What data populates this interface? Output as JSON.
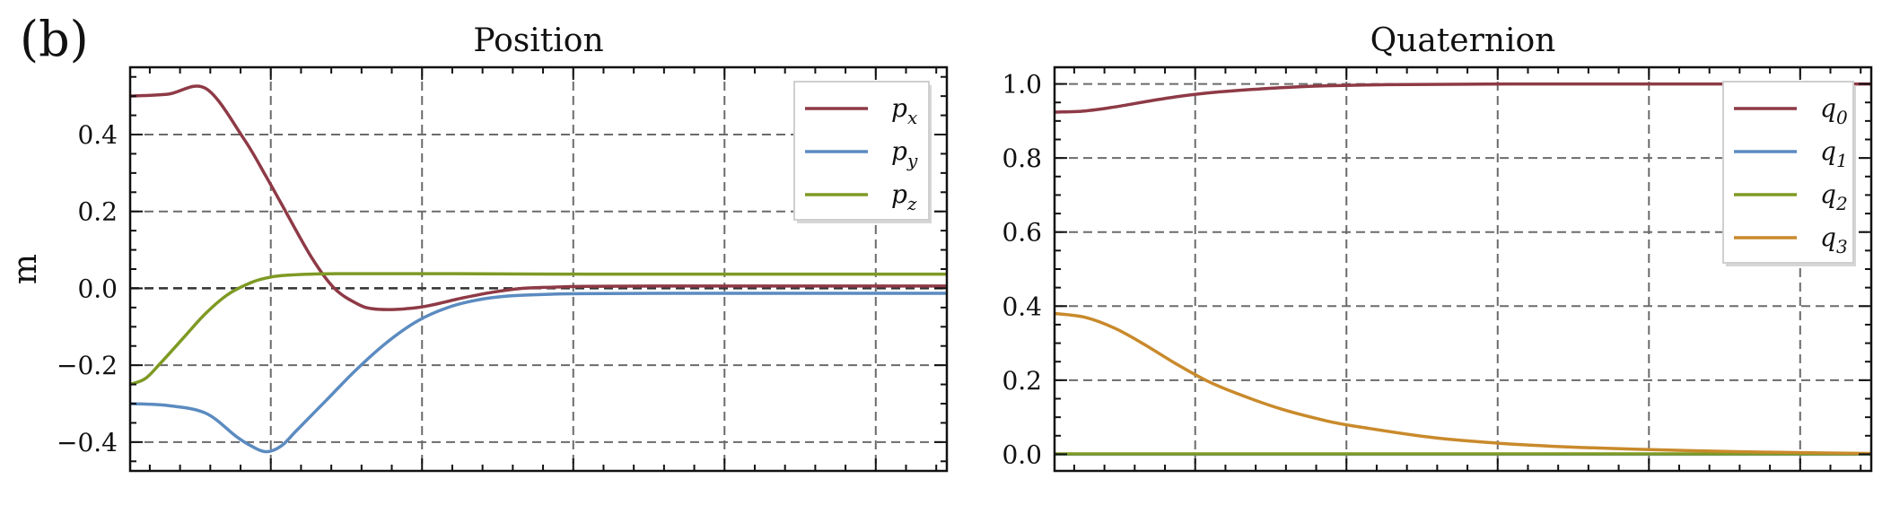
{
  "panel_label": "(b)",
  "chart_data": [
    {
      "type": "line",
      "title": "Position",
      "xlabel": "",
      "ylabel": "m",
      "xlim": [
        0,
        5.4
      ],
      "ylim": [
        -0.475,
        0.575
      ],
      "x_ticks": [
        0.93,
        1.93,
        2.93,
        3.93,
        4.93
      ],
      "x_tick_labels": [],
      "y_ticks": [
        -0.4,
        -0.2,
        0.0,
        0.2,
        0.4
      ],
      "y_tick_labels": [
        "−0.4",
        "−0.2",
        "0.0",
        "0.2",
        "0.4"
      ],
      "grid": true,
      "zero_line": true,
      "legend_position": "top-right",
      "series": [
        {
          "name": "p_x",
          "label": "p",
          "sub": "x",
          "color": "#8e3a46",
          "x": [
            0,
            0.25,
            0.5,
            0.75,
            0.9,
            1.0,
            1.2,
            1.35,
            1.5,
            1.6,
            1.75,
            1.9,
            2.0,
            2.2,
            2.4,
            2.6,
            2.8,
            3.0,
            3.5,
            4.0,
            4.5,
            5.0,
            5.4
          ],
          "y": [
            0.5,
            0.505,
            0.52,
            0.39,
            0.29,
            0.22,
            0.08,
            0.0,
            -0.04,
            -0.053,
            -0.055,
            -0.05,
            -0.043,
            -0.025,
            -0.01,
            0.0,
            0.003,
            0.005,
            0.006,
            0.006,
            0.006,
            0.006,
            0.006
          ]
        },
        {
          "name": "p_y",
          "label": "p",
          "sub": "y",
          "color": "#5b8bc0",
          "x": [
            0,
            0.25,
            0.5,
            0.7,
            0.8,
            0.9,
            1.0,
            1.1,
            1.3,
            1.5,
            1.7,
            1.9,
            2.1,
            2.3,
            2.5,
            2.8,
            3.0,
            3.5,
            4.0,
            4.5,
            5.0,
            5.4
          ],
          "y": [
            -0.3,
            -0.305,
            -0.325,
            -0.385,
            -0.41,
            -0.425,
            -0.41,
            -0.37,
            -0.29,
            -0.21,
            -0.14,
            -0.085,
            -0.05,
            -0.03,
            -0.02,
            -0.015,
            -0.014,
            -0.013,
            -0.013,
            -0.013,
            -0.013,
            -0.013
          ]
        },
        {
          "name": "p_z",
          "label": "p",
          "sub": "z",
          "color": "#7e9a24",
          "x": [
            0,
            0.1,
            0.2,
            0.35,
            0.5,
            0.65,
            0.8,
            0.9,
            1.0,
            1.2,
            1.4,
            1.6,
            2.0,
            3.0,
            4.0,
            5.0,
            5.4
          ],
          "y": [
            -0.25,
            -0.235,
            -0.195,
            -0.13,
            -0.065,
            -0.015,
            0.015,
            0.027,
            0.033,
            0.037,
            0.038,
            0.038,
            0.038,
            0.037,
            0.037,
            0.037,
            0.037
          ]
        }
      ],
      "legend_entries": [
        {
          "label": "p",
          "sub": "x"
        },
        {
          "label": "p",
          "sub": "y"
        },
        {
          "label": "p",
          "sub": "z"
        }
      ]
    },
    {
      "type": "line",
      "title": "Quaternion",
      "xlabel": "",
      "ylabel": "",
      "xlim": [
        0,
        5.4
      ],
      "ylim": [
        -0.045,
        1.045
      ],
      "x_ticks": [
        0.93,
        1.93,
        2.93,
        3.93,
        4.93
      ],
      "x_tick_labels": [],
      "y_ticks": [
        0.0,
        0.2,
        0.4,
        0.6,
        0.8,
        1.0
      ],
      "y_tick_labels": [
        "0.0",
        "0.2",
        "0.4",
        "0.6",
        "0.8",
        "1.0"
      ],
      "grid": true,
      "zero_line": false,
      "legend_position": "top-right",
      "series": [
        {
          "name": "q_0",
          "label": "q",
          "sub": "0",
          "color": "#8e3a46",
          "x": [
            0,
            0.2,
            0.4,
            0.6,
            0.8,
            1.0,
            1.2,
            1.5,
            1.8,
            2.2,
            2.6,
            3.0,
            3.5,
            4.0,
            5.0,
            5.4
          ],
          "y": [
            0.924,
            0.927,
            0.938,
            0.952,
            0.965,
            0.975,
            0.982,
            0.99,
            0.995,
            0.998,
            0.999,
            1.0,
            1.0,
            1.0,
            1.0,
            1.0
          ]
        },
        {
          "name": "q_1",
          "label": "q",
          "sub": "1",
          "color": "#5b8bc0",
          "x": [
            0,
            5.4
          ],
          "y": [
            0.0,
            0.0
          ]
        },
        {
          "name": "q_2",
          "label": "q",
          "sub": "2",
          "color": "#7e9a24",
          "x": [
            0,
            5.4
          ],
          "y": [
            0.001,
            0.001
          ]
        },
        {
          "name": "q_3",
          "label": "q",
          "sub": "3",
          "color": "#c98a2b",
          "x": [
            0,
            0.2,
            0.4,
            0.6,
            0.8,
            1.0,
            1.2,
            1.5,
            1.8,
            2.0,
            2.5,
            3.0,
            3.5,
            4.0,
            4.5,
            5.0,
            5.4
          ],
          "y": [
            0.38,
            0.37,
            0.34,
            0.295,
            0.245,
            0.2,
            0.165,
            0.122,
            0.09,
            0.075,
            0.045,
            0.028,
            0.018,
            0.012,
            0.007,
            0.004,
            0.002
          ]
        }
      ],
      "legend_entries": [
        {
          "label": "q",
          "sub": "0"
        },
        {
          "label": "q",
          "sub": "1"
        },
        {
          "label": "q",
          "sub": "2"
        },
        {
          "label": "q",
          "sub": "3"
        }
      ]
    }
  ]
}
